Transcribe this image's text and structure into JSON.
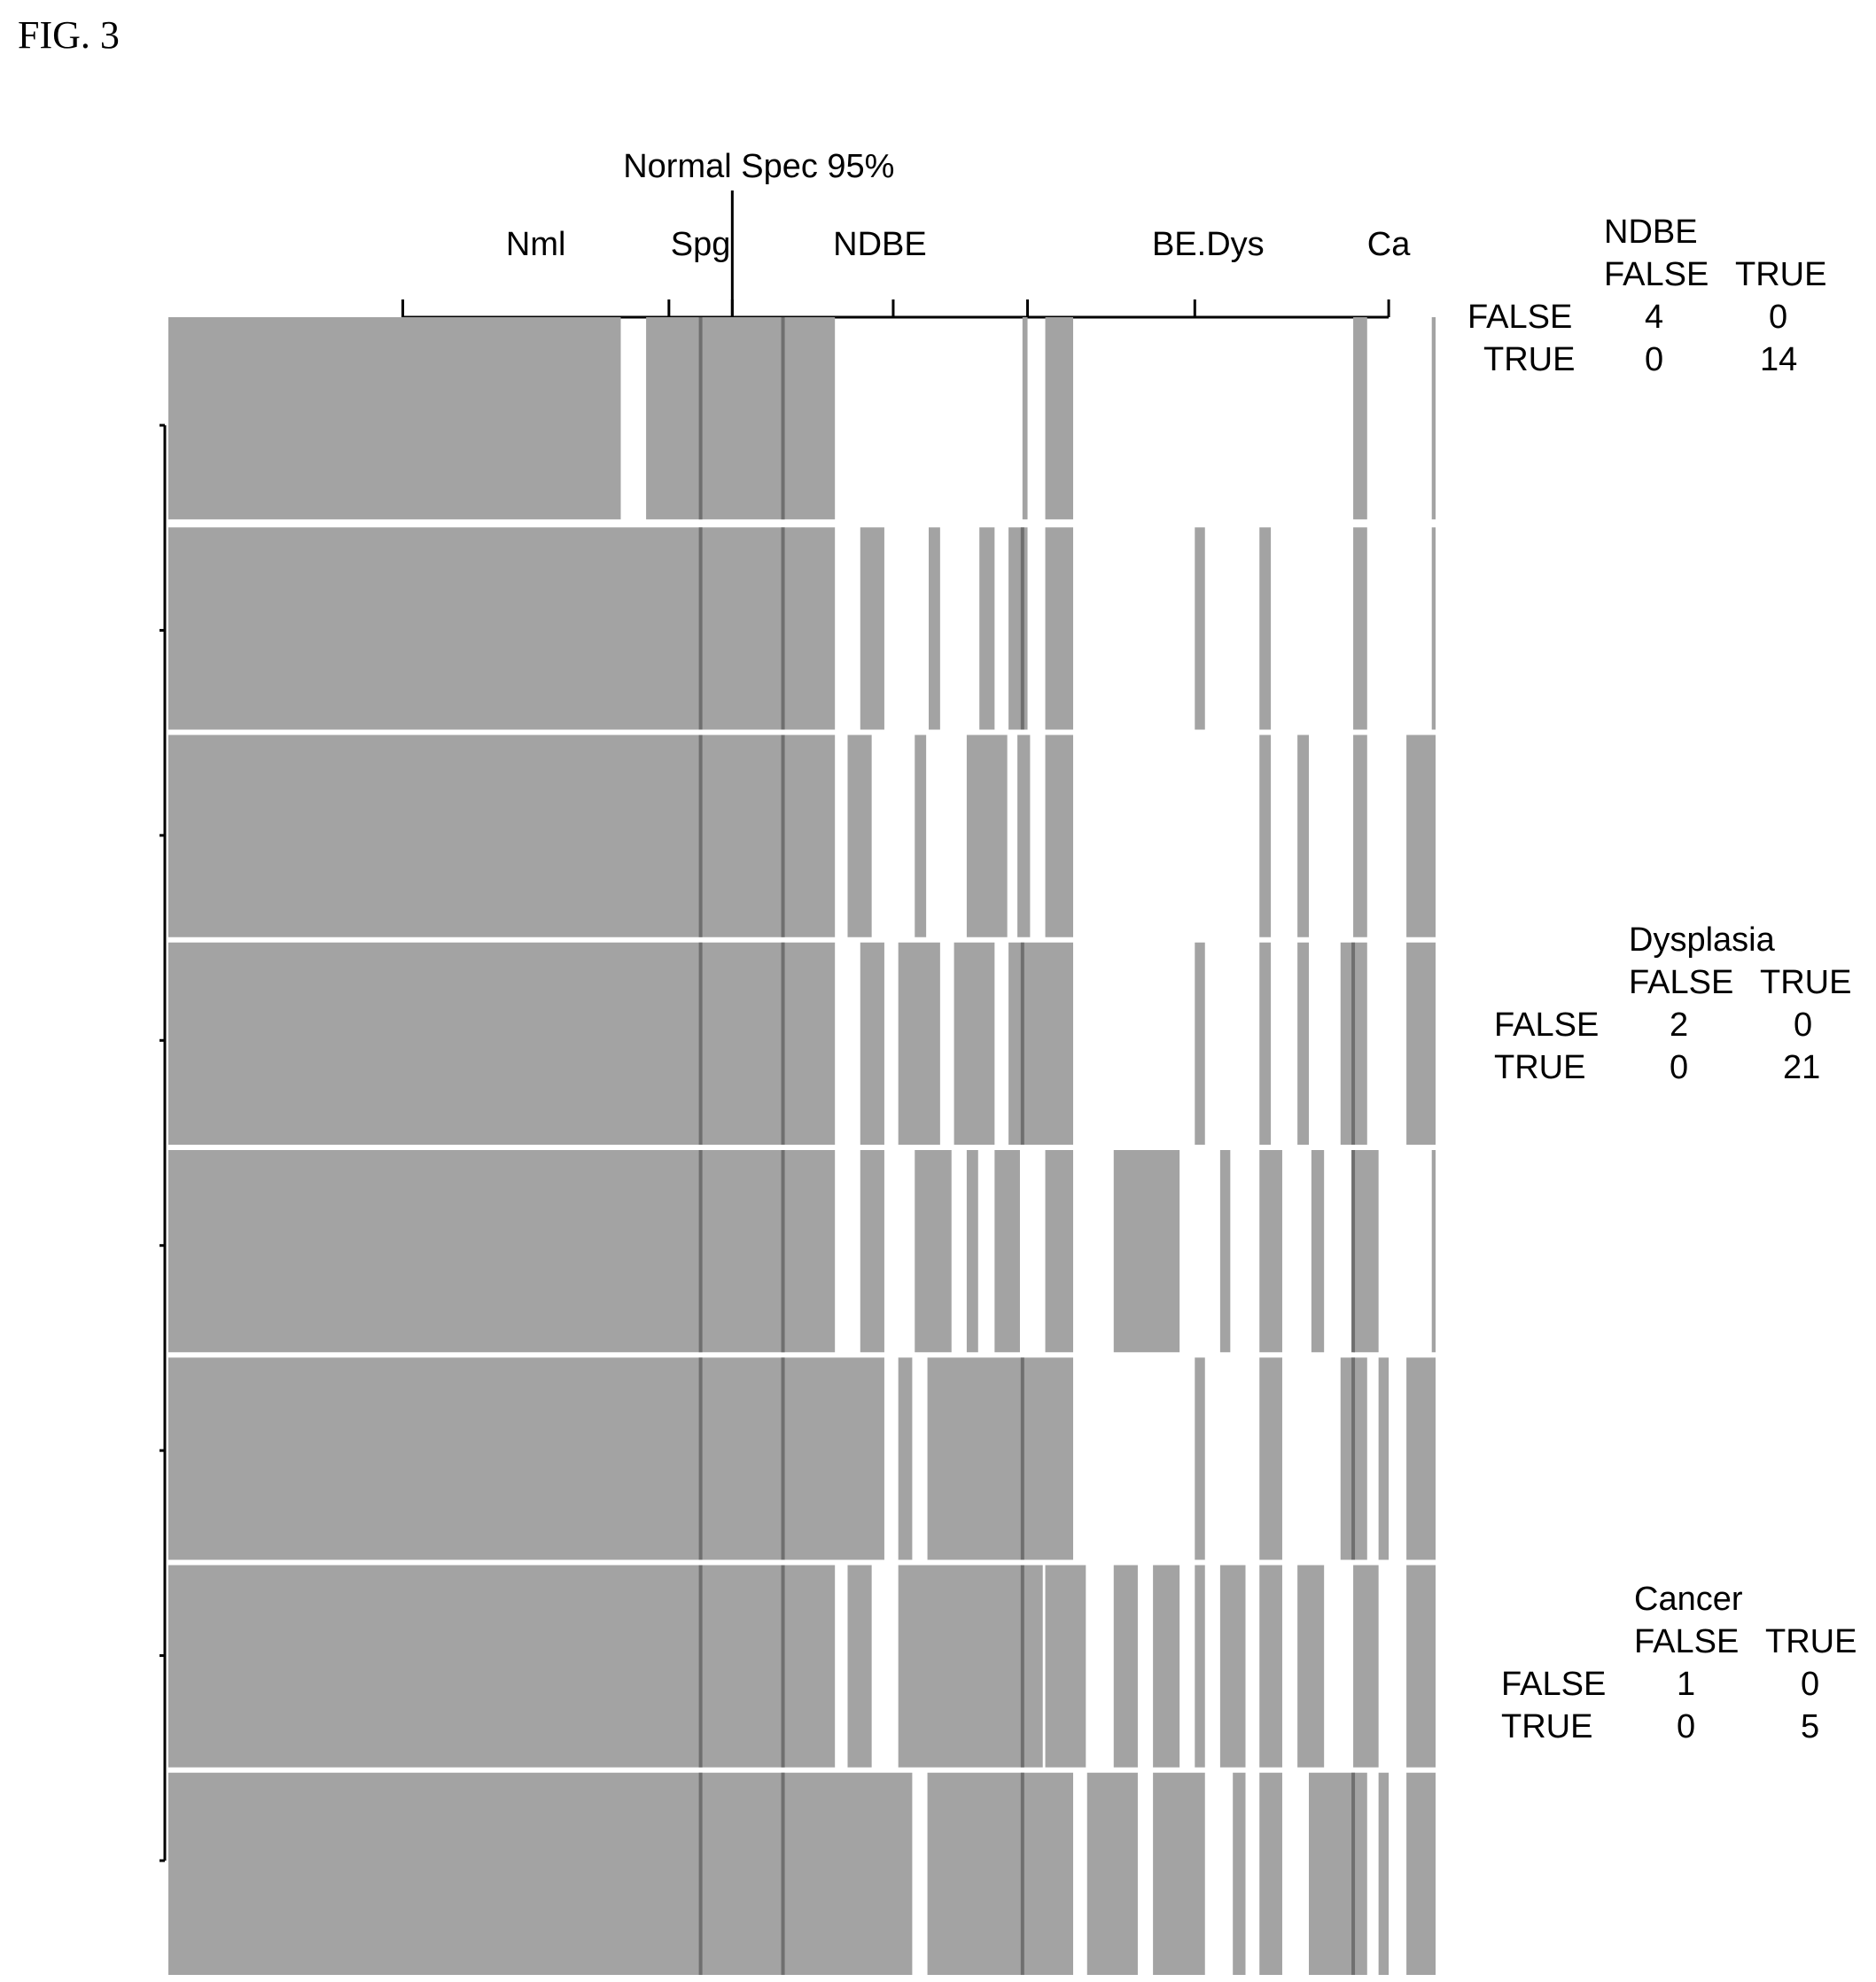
{
  "figure_label": "FIG. 3",
  "chart_data": {
    "type": "heatmap",
    "threshold_label": "Normal Spec 95%",
    "threshold_position": 0.445,
    "group_axis": {
      "groups": [
        {
          "label": "Nml",
          "start": 0.185,
          "end": 0.395
        },
        {
          "label": "Spg",
          "start": 0.395,
          "end": 0.445
        },
        {
          "label": "NDBE",
          "start": 0.445,
          "end": 0.678
        },
        {
          "label": "BE.Dys",
          "start": 0.678,
          "end": 0.963
        },
        {
          "label": "Ca",
          "start": 0.963,
          "end": 0.963
        }
      ],
      "tick_positions": [
        0.185,
        0.395,
        0.445,
        0.572,
        0.678,
        0.81,
        0.963
      ]
    },
    "row_count": 8,
    "cell_color": "#a3a3a3",
    "line_color": "#6f6f6f",
    "rows": [
      {
        "spans": [
          [
            0,
            0.357
          ],
          [
            0.377,
            0.526
          ],
          [
            0.674,
            0.678
          ],
          [
            0.692,
            0.714
          ],
          [
            0.935,
            0.946
          ],
          [
            0.997,
            1
          ]
        ],
        "lines": [
          0.42,
          0.485
        ]
      },
      {
        "spans": [
          [
            0,
            0.526
          ],
          [
            0.546,
            0.565
          ],
          [
            0.6,
            0.609
          ],
          [
            0.64,
            0.652
          ],
          [
            0.663,
            0.678
          ],
          [
            0.692,
            0.714
          ],
          [
            0.81,
            0.818
          ],
          [
            0.861,
            0.87
          ],
          [
            0.935,
            0.946
          ],
          [
            0.997,
            1
          ]
        ],
        "lines": [
          0.42,
          0.485,
          0.674
        ]
      },
      {
        "spans": [
          [
            0,
            0.526
          ],
          [
            0.536,
            0.555
          ],
          [
            0.589,
            0.598
          ],
          [
            0.63,
            0.662
          ],
          [
            0.67,
            0.68
          ],
          [
            0.692,
            0.714
          ],
          [
            0.861,
            0.87
          ],
          [
            0.891,
            0.9
          ],
          [
            0.935,
            0.946
          ],
          [
            0.977,
            1
          ]
        ],
        "lines": [
          0.42,
          0.485
        ]
      },
      {
        "spans": [
          [
            0,
            0.526
          ],
          [
            0.546,
            0.565
          ],
          [
            0.576,
            0.609
          ],
          [
            0.62,
            0.652
          ],
          [
            0.663,
            0.714
          ],
          [
            0.81,
            0.818
          ],
          [
            0.861,
            0.87
          ],
          [
            0.891,
            0.9
          ],
          [
            0.925,
            0.946
          ],
          [
            0.977,
            1
          ]
        ],
        "lines": [
          0.42,
          0.485,
          0.674,
          0.935
        ]
      },
      {
        "spans": [
          [
            0,
            0.526
          ],
          [
            0.546,
            0.565
          ],
          [
            0.589,
            0.618
          ],
          [
            0.63,
            0.639
          ],
          [
            0.652,
            0.672
          ],
          [
            0.692,
            0.714
          ],
          [
            0.746,
            0.798
          ],
          [
            0.83,
            0.838
          ],
          [
            0.861,
            0.879
          ],
          [
            0.902,
            0.912
          ],
          [
            0.935,
            0.955
          ],
          [
            0.997,
            1
          ]
        ],
        "lines": [
          0.42,
          0.485,
          0.935
        ]
      },
      {
        "spans": [
          [
            0,
            0.565
          ],
          [
            0.576,
            0.587
          ],
          [
            0.599,
            0.714
          ],
          [
            0.81,
            0.818
          ],
          [
            0.861,
            0.879
          ],
          [
            0.925,
            0.946
          ],
          [
            0.955,
            0.963
          ],
          [
            0.977,
            1
          ]
        ],
        "lines": [
          0.42,
          0.485,
          0.674,
          0.935
        ]
      },
      {
        "spans": [
          [
            0,
            0.526
          ],
          [
            0.536,
            0.555
          ],
          [
            0.576,
            0.69
          ],
          [
            0.692,
            0.724
          ],
          [
            0.746,
            0.765
          ],
          [
            0.777,
            0.798
          ],
          [
            0.81,
            0.818
          ],
          [
            0.83,
            0.85
          ],
          [
            0.861,
            0.879
          ],
          [
            0.891,
            0.912
          ],
          [
            0.935,
            0.955
          ],
          [
            0.977,
            1
          ]
        ],
        "lines": [
          0.42,
          0.485,
          0.674
        ]
      },
      {
        "spans": [
          [
            0,
            0.587
          ],
          [
            0.599,
            0.714
          ],
          [
            0.725,
            0.765
          ],
          [
            0.777,
            0.818
          ],
          [
            0.84,
            0.85
          ],
          [
            0.861,
            0.879
          ],
          [
            0.9,
            0.935
          ],
          [
            0.935,
            0.946
          ],
          [
            0.955,
            0.963
          ],
          [
            0.977,
            1
          ]
        ],
        "lines": [
          0.42,
          0.485,
          0.674,
          0.935
        ]
      }
    ],
    "confusion_tables": [
      {
        "title": "NDBE",
        "col_headers": [
          "FALSE",
          "TRUE"
        ],
        "row_headers": [
          "FALSE",
          "TRUE"
        ],
        "values": [
          [
            4,
            0
          ],
          [
            0,
            14
          ]
        ]
      },
      {
        "title": "Dysplasia",
        "col_headers": [
          "FALSE",
          "TRUE"
        ],
        "row_headers": [
          "FALSE",
          "TRUE"
        ],
        "values": [
          [
            2,
            0
          ],
          [
            0,
            21
          ]
        ]
      },
      {
        "title": "Cancer",
        "col_headers": [
          "FALSE",
          "TRUE"
        ],
        "row_headers": [
          "FALSE",
          "TRUE"
        ],
        "values": [
          [
            1,
            0
          ],
          [
            0,
            5
          ]
        ]
      }
    ]
  }
}
